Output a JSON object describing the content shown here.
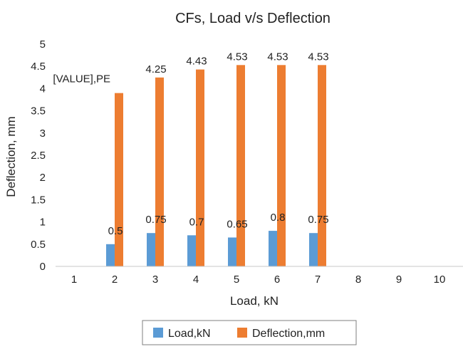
{
  "chart_data": {
    "type": "bar",
    "title": "CFs, Load v/s Deflection",
    "xlabel": "Load, kN",
    "ylabel": "Deflection, mm",
    "ylim": [
      0,
      5
    ],
    "yticks": [
      "0",
      "0.5",
      "1",
      "1.5",
      "2",
      "2.5",
      "3",
      "3.5",
      "4",
      "4.5",
      "5"
    ],
    "categories": [
      "1",
      "2",
      "3",
      "4",
      "5",
      "6",
      "7",
      "8",
      "9",
      "10"
    ],
    "grid": false,
    "legend_position": "bottom",
    "series": [
      {
        "name": "Load,kN",
        "color": "#5B9BD5",
        "values": [
          null,
          0.5,
          0.75,
          0.7,
          0.65,
          0.8,
          0.75,
          null,
          null,
          null
        ],
        "labels": [
          null,
          "0.5",
          "0.75",
          "0.7",
          "0.65",
          "0.8",
          "0.75",
          null,
          null,
          null
        ]
      },
      {
        "name": "Deflection,mm",
        "color": "#ED7D31",
        "values": [
          null,
          3.9,
          4.25,
          4.43,
          4.53,
          4.53,
          4.53,
          null,
          null,
          null
        ],
        "labels": [
          null,
          "[VALUE],PE",
          "4.25",
          "4.43",
          "4.53",
          "4.53",
          "4.53",
          null,
          null,
          null
        ]
      }
    ]
  }
}
